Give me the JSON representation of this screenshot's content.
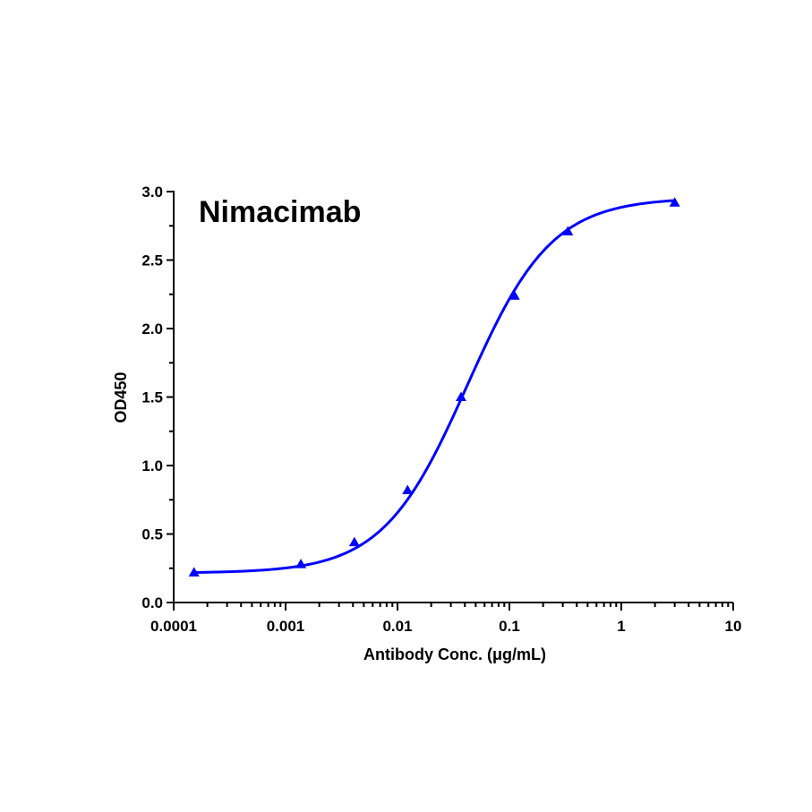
{
  "chart_data": {
    "type": "scatter",
    "title": "Nimacimab",
    "xlabel": "Antibody Conc. (μg/mL)",
    "ylabel": "OD450",
    "x_scale": "log",
    "xlim": [
      0.0001,
      10
    ],
    "ylim": [
      0,
      3.0
    ],
    "x_ticks": [
      0.0001,
      0.001,
      0.01,
      0.1,
      1,
      10
    ],
    "x_tick_labels": [
      "0.0001",
      "0.001",
      "0.01",
      "0.1",
      "1",
      "10"
    ],
    "y_ticks": [
      0,
      0.5,
      1.0,
      1.5,
      2.0,
      2.5,
      3.0
    ],
    "y_tick_labels": [
      "0.0",
      "0.5",
      "1.0",
      "1.5",
      "2.0",
      "2.5",
      "3.0"
    ],
    "grid": false,
    "fit": "4PL sigmoid curve",
    "series": [
      {
        "marker": "triangle",
        "color": "#0000ff",
        "x": [
          0.000152,
          0.00137,
          0.00412,
          0.0123,
          0.037,
          0.111,
          0.333,
          3.0
        ],
        "y": [
          0.22,
          0.28,
          0.44,
          0.82,
          1.5,
          2.24,
          2.71,
          2.92
        ]
      }
    ]
  }
}
